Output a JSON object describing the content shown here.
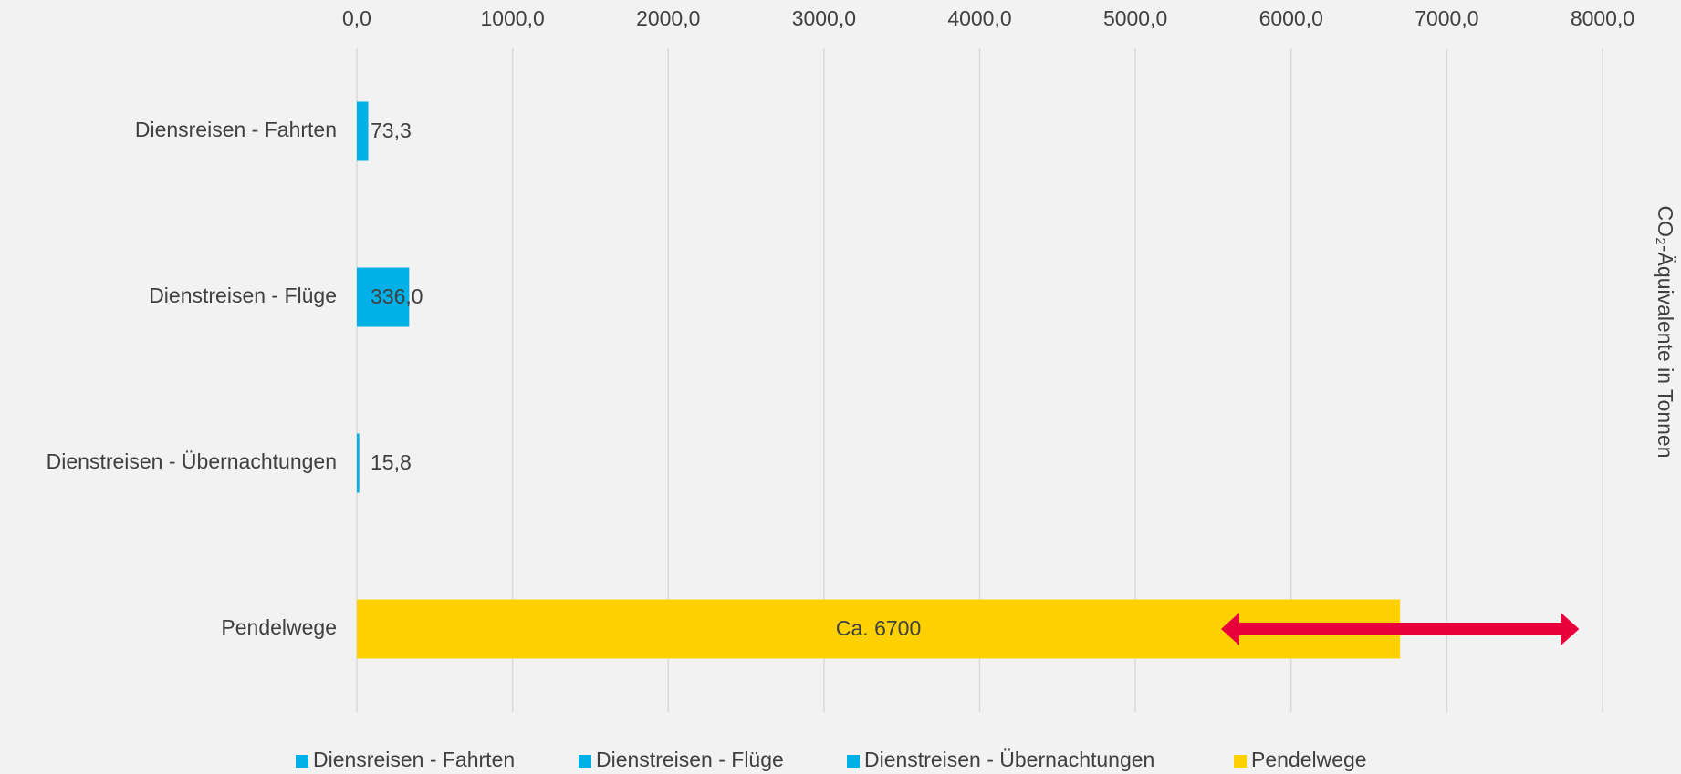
{
  "chart_data": {
    "type": "hbar",
    "categories": [
      "Diensreisen - Fahrten",
      "Dienstreisen - Flüge",
      "Dienstreisen - Übernachtungen",
      "Pendelwege"
    ],
    "values": [
      73.3,
      336.0,
      15.8,
      6700
    ],
    "value_labels": [
      "73,3",
      "336,0",
      "15,8",
      "Ca. 6700"
    ],
    "colors": [
      "#00b0e6",
      "#00b0e6",
      "#00b0e6",
      "#ffd100"
    ],
    "xlim": [
      0,
      8000
    ],
    "xticks": [
      {
        "value": 0,
        "label": "0,0"
      },
      {
        "value": 1000,
        "label": "1000,0"
      },
      {
        "value": 2000,
        "label": "2000,0"
      },
      {
        "value": 3000,
        "label": "3000,0"
      },
      {
        "value": 4000,
        "label": "4000,0"
      },
      {
        "value": 5000,
        "label": "5000,0"
      },
      {
        "value": 6000,
        "label": "6000,0"
      },
      {
        "value": 7000,
        "label": "7000,0"
      },
      {
        "value": 8000,
        "label": "8000,0"
      }
    ],
    "grid": true,
    "axis_title": "CO₂-Äquivalente in Tonnen",
    "legend": "bottom",
    "range_annotation": {
      "from": 5550,
      "to": 7850,
      "color": "#e8003d"
    }
  }
}
